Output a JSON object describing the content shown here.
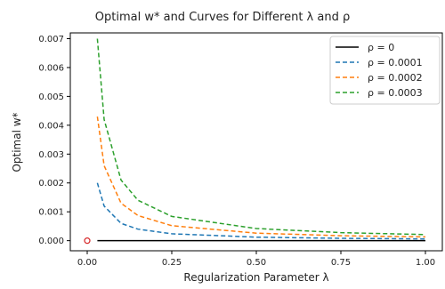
{
  "chart_data": {
    "type": "line",
    "title": "Optimal w* and Curves for Different λ and ρ",
    "xlabel": "Regularization Parameter λ",
    "ylabel": "Optimal w*",
    "xlim": [
      -0.05,
      1.05
    ],
    "ylim": [
      -0.00035,
      0.0072
    ],
    "x_ticks": [
      0.0,
      0.25,
      0.5,
      0.75,
      1.0
    ],
    "x_tick_labels": [
      "0.00",
      "0.25",
      "0.50",
      "0.75",
      "1.00"
    ],
    "y_ticks": [
      0.0,
      0.001,
      0.002,
      0.003,
      0.004,
      0.005,
      0.006,
      0.007
    ],
    "y_tick_labels": [
      "0.000",
      "0.001",
      "0.002",
      "0.003",
      "0.004",
      "0.005",
      "0.006",
      "0.007"
    ],
    "grid": false,
    "legend_position": "top-right",
    "series": [
      {
        "name": "ρ = 0",
        "color": "#000000",
        "style": "solid",
        "x": [
          0.03,
          0.05,
          0.1,
          0.25,
          0.5,
          0.75,
          1.0
        ],
        "y": [
          0,
          0,
          0,
          0,
          0,
          0,
          0
        ]
      },
      {
        "name": "ρ = 0.0001",
        "color": "#1f77b4",
        "style": "dashed",
        "x": [
          0.03,
          0.05,
          0.1,
          0.15,
          0.25,
          0.5,
          0.75,
          1.0
        ],
        "y": [
          0.002,
          0.0012,
          0.0006,
          0.0004,
          0.00024,
          0.00012,
          8e-05,
          6e-05
        ]
      },
      {
        "name": "ρ = 0.0002",
        "color": "#ff7f0e",
        "style": "dashed",
        "x": [
          0.03,
          0.05,
          0.1,
          0.15,
          0.25,
          0.5,
          0.75,
          1.0
        ],
        "y": [
          0.0043,
          0.0026,
          0.0013,
          0.00087,
          0.00052,
          0.00026,
          0.00017,
          0.00013
        ]
      },
      {
        "name": "ρ = 0.0003",
        "color": "#2ca02c",
        "style": "dashed",
        "x": [
          0.03,
          0.05,
          0.1,
          0.15,
          0.25,
          0.5,
          0.75,
          1.0
        ],
        "y": [
          0.007,
          0.0042,
          0.0021,
          0.0014,
          0.00084,
          0.00042,
          0.00028,
          0.00021
        ]
      }
    ],
    "marker": {
      "x": 0.0,
      "y": 0.0,
      "color": "#d62728",
      "shape": "circle-open"
    }
  }
}
